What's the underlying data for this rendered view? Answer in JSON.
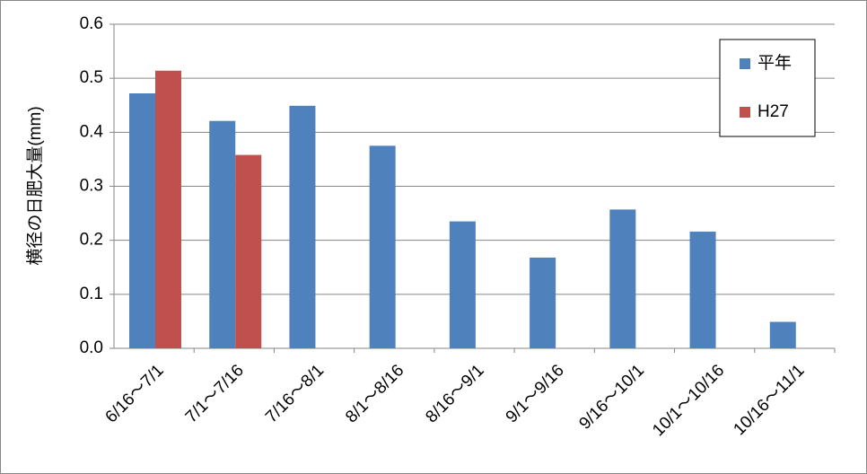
{
  "chart_data": {
    "type": "bar",
    "y_label": "横径の日肥大量(mm)",
    "categories": [
      "6/16～7/1",
      "7/1～7/16",
      "7/16～8/1",
      "8/1～8/16",
      "8/16～9/1",
      "9/1～9/16",
      "9/16～10/1",
      "10/1～10/16",
      "10/16～11/1"
    ],
    "series": [
      {
        "name": "平年",
        "color": "#4f81bd",
        "values": [
          0.472,
          0.421,
          0.449,
          0.375,
          0.235,
          0.168,
          0.257,
          0.216,
          0.049
        ]
      },
      {
        "name": "H27",
        "color": "#c0504d",
        "values": [
          0.514,
          0.358,
          null,
          null,
          null,
          null,
          null,
          null,
          null
        ]
      }
    ],
    "ylim": [
      0,
      0.6
    ],
    "yticks": [
      {
        "value": 0,
        "label": "0.0"
      },
      0.1,
      0.2,
      0.3,
      0.4,
      0.5,
      0.6
    ],
    "grid": true,
    "legend": "top-right"
  }
}
